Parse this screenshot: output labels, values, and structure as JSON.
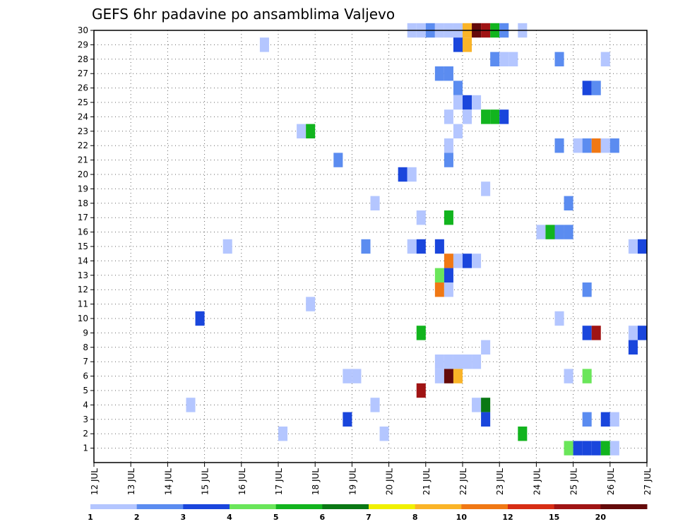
{
  "chart_data": {
    "type": "heatmap",
    "title": "GEFS 6hr padavine po ansamblima Valjevo",
    "y_ticks": [
      "1",
      "2",
      "3",
      "4",
      "5",
      "6",
      "7",
      "8",
      "9",
      "10",
      "11",
      "12",
      "13",
      "14",
      "15",
      "16",
      "17",
      "18",
      "19",
      "20",
      "21",
      "22",
      "23",
      "24",
      "25",
      "26",
      "27",
      "28",
      "29",
      "30"
    ],
    "x_ticks": [
      "12 JUL",
      "13 JUL",
      "14 JUL",
      "15 JUL",
      "16 JUL",
      "17 JUL",
      "18 JUL",
      "19 JUL",
      "20 JUL",
      "21 JUL",
      "22 JUL",
      "23 JUL",
      "24 JUL",
      "25 JUL",
      "26 JUL",
      "27 JUL"
    ],
    "x_range": [
      0,
      60
    ],
    "y_range": [
      0,
      30
    ],
    "grid": true,
    "legend": {
      "placement": "bottom",
      "labels": [
        "1",
        "2",
        "3",
        "4",
        "5",
        "6",
        "7",
        "8",
        "10",
        "12",
        "15",
        "20"
      ],
      "colors": [
        "#b4c6ff",
        "#5b8cf0",
        "#1a46dc",
        "#6ae65a",
        "#12b41e",
        "#0a7814",
        "#f0f000",
        "#fab428",
        "#f07814",
        "#d72d14",
        "#a01414",
        "#640a0a"
      ]
    },
    "cells": [
      {
        "member": 30,
        "steps": [
          [
            35,
            1
          ],
          [
            36,
            1
          ],
          [
            37,
            2
          ],
          [
            38,
            1
          ],
          [
            39,
            1
          ],
          [
            40,
            1
          ],
          [
            41,
            8
          ],
          [
            42,
            20
          ],
          [
            43,
            15
          ],
          [
            44,
            5
          ],
          [
            45,
            2
          ],
          [
            47,
            1
          ]
        ]
      },
      {
        "member": 29,
        "steps": [
          [
            19,
            1
          ],
          [
            40,
            3
          ],
          [
            41,
            8
          ]
        ]
      },
      {
        "member": 28,
        "steps": [
          [
            44,
            2
          ],
          [
            45,
            1
          ],
          [
            46,
            1
          ],
          [
            51,
            2
          ],
          [
            56,
            1
          ]
        ]
      },
      {
        "member": 27,
        "steps": [
          [
            38,
            2
          ],
          [
            39,
            2
          ]
        ]
      },
      {
        "member": 26,
        "steps": [
          [
            40,
            2
          ],
          [
            54,
            3
          ],
          [
            55,
            2
          ]
        ]
      },
      {
        "member": 25,
        "steps": [
          [
            40,
            1
          ],
          [
            41,
            3
          ],
          [
            42,
            1
          ]
        ]
      },
      {
        "member": 24,
        "steps": [
          [
            39,
            1
          ],
          [
            41,
            1
          ],
          [
            43,
            5
          ],
          [
            44,
            5
          ],
          [
            45,
            3
          ]
        ]
      },
      {
        "member": 23,
        "steps": [
          [
            23,
            1
          ],
          [
            24,
            5
          ],
          [
            40,
            1
          ]
        ]
      },
      {
        "member": 22,
        "steps": [
          [
            39,
            1
          ],
          [
            51,
            2
          ],
          [
            53,
            1
          ],
          [
            54,
            2
          ],
          [
            55,
            10
          ],
          [
            56,
            1
          ],
          [
            57,
            2
          ]
        ]
      },
      {
        "member": 21,
        "steps": [
          [
            27,
            2
          ],
          [
            39,
            2
          ]
        ]
      },
      {
        "member": 20,
        "steps": [
          [
            34,
            3
          ],
          [
            35,
            1
          ]
        ]
      },
      {
        "member": 19,
        "steps": [
          [
            43,
            1
          ]
        ]
      },
      {
        "member": 18,
        "steps": [
          [
            31,
            1
          ],
          [
            52,
            2
          ]
        ]
      },
      {
        "member": 17,
        "steps": [
          [
            36,
            1
          ],
          [
            39,
            5
          ]
        ]
      },
      {
        "member": 16,
        "steps": [
          [
            49,
            1
          ],
          [
            50,
            5
          ],
          [
            51,
            2
          ],
          [
            52,
            2
          ]
        ]
      },
      {
        "member": 15,
        "steps": [
          [
            15,
            1
          ],
          [
            30,
            2
          ],
          [
            35,
            1
          ],
          [
            36,
            3
          ],
          [
            38,
            3
          ],
          [
            59,
            1
          ],
          [
            60,
            3
          ]
        ]
      },
      {
        "member": 14,
        "steps": [
          [
            39,
            10
          ],
          [
            40,
            1
          ],
          [
            41,
            3
          ],
          [
            42,
            1
          ]
        ]
      },
      {
        "member": 13,
        "steps": [
          [
            38,
            4
          ],
          [
            39,
            3
          ]
        ]
      },
      {
        "member": 12,
        "steps": [
          [
            38,
            10
          ],
          [
            39,
            1
          ],
          [
            54,
            2
          ]
        ]
      },
      {
        "member": 11,
        "steps": [
          [
            24,
            1
          ]
        ]
      },
      {
        "member": 10,
        "steps": [
          [
            12,
            3
          ],
          [
            51,
            1
          ]
        ]
      },
      {
        "member": 9,
        "steps": [
          [
            36,
            5
          ],
          [
            54,
            3
          ],
          [
            55,
            15
          ],
          [
            59,
            1
          ],
          [
            60,
            3
          ]
        ]
      },
      {
        "member": 8,
        "steps": [
          [
            43,
            1
          ],
          [
            59,
            3
          ]
        ]
      },
      {
        "member": 7,
        "steps": [
          [
            38,
            1
          ],
          [
            39,
            1
          ],
          [
            40,
            1
          ],
          [
            41,
            1
          ],
          [
            42,
            1
          ]
        ]
      },
      {
        "member": 6,
        "steps": [
          [
            28,
            1
          ],
          [
            29,
            1
          ],
          [
            38,
            1
          ],
          [
            39,
            20
          ],
          [
            40,
            8
          ],
          [
            52,
            1
          ],
          [
            54,
            4
          ]
        ]
      },
      {
        "member": 5,
        "steps": [
          [
            36,
            15
          ]
        ]
      },
      {
        "member": 4,
        "steps": [
          [
            11,
            1
          ],
          [
            31,
            1
          ],
          [
            42,
            1
          ],
          [
            43,
            6
          ]
        ]
      },
      {
        "member": 3,
        "steps": [
          [
            28,
            3
          ],
          [
            43,
            3
          ],
          [
            54,
            2
          ],
          [
            56,
            3
          ],
          [
            57,
            1
          ]
        ]
      },
      {
        "member": 2,
        "steps": [
          [
            21,
            1
          ],
          [
            32,
            1
          ],
          [
            47,
            5
          ]
        ]
      },
      {
        "member": 1,
        "steps": [
          [
            52,
            4
          ],
          [
            53,
            3
          ],
          [
            54,
            3
          ],
          [
            55,
            3
          ],
          [
            56,
            5
          ],
          [
            57,
            1
          ]
        ]
      }
    ]
  }
}
